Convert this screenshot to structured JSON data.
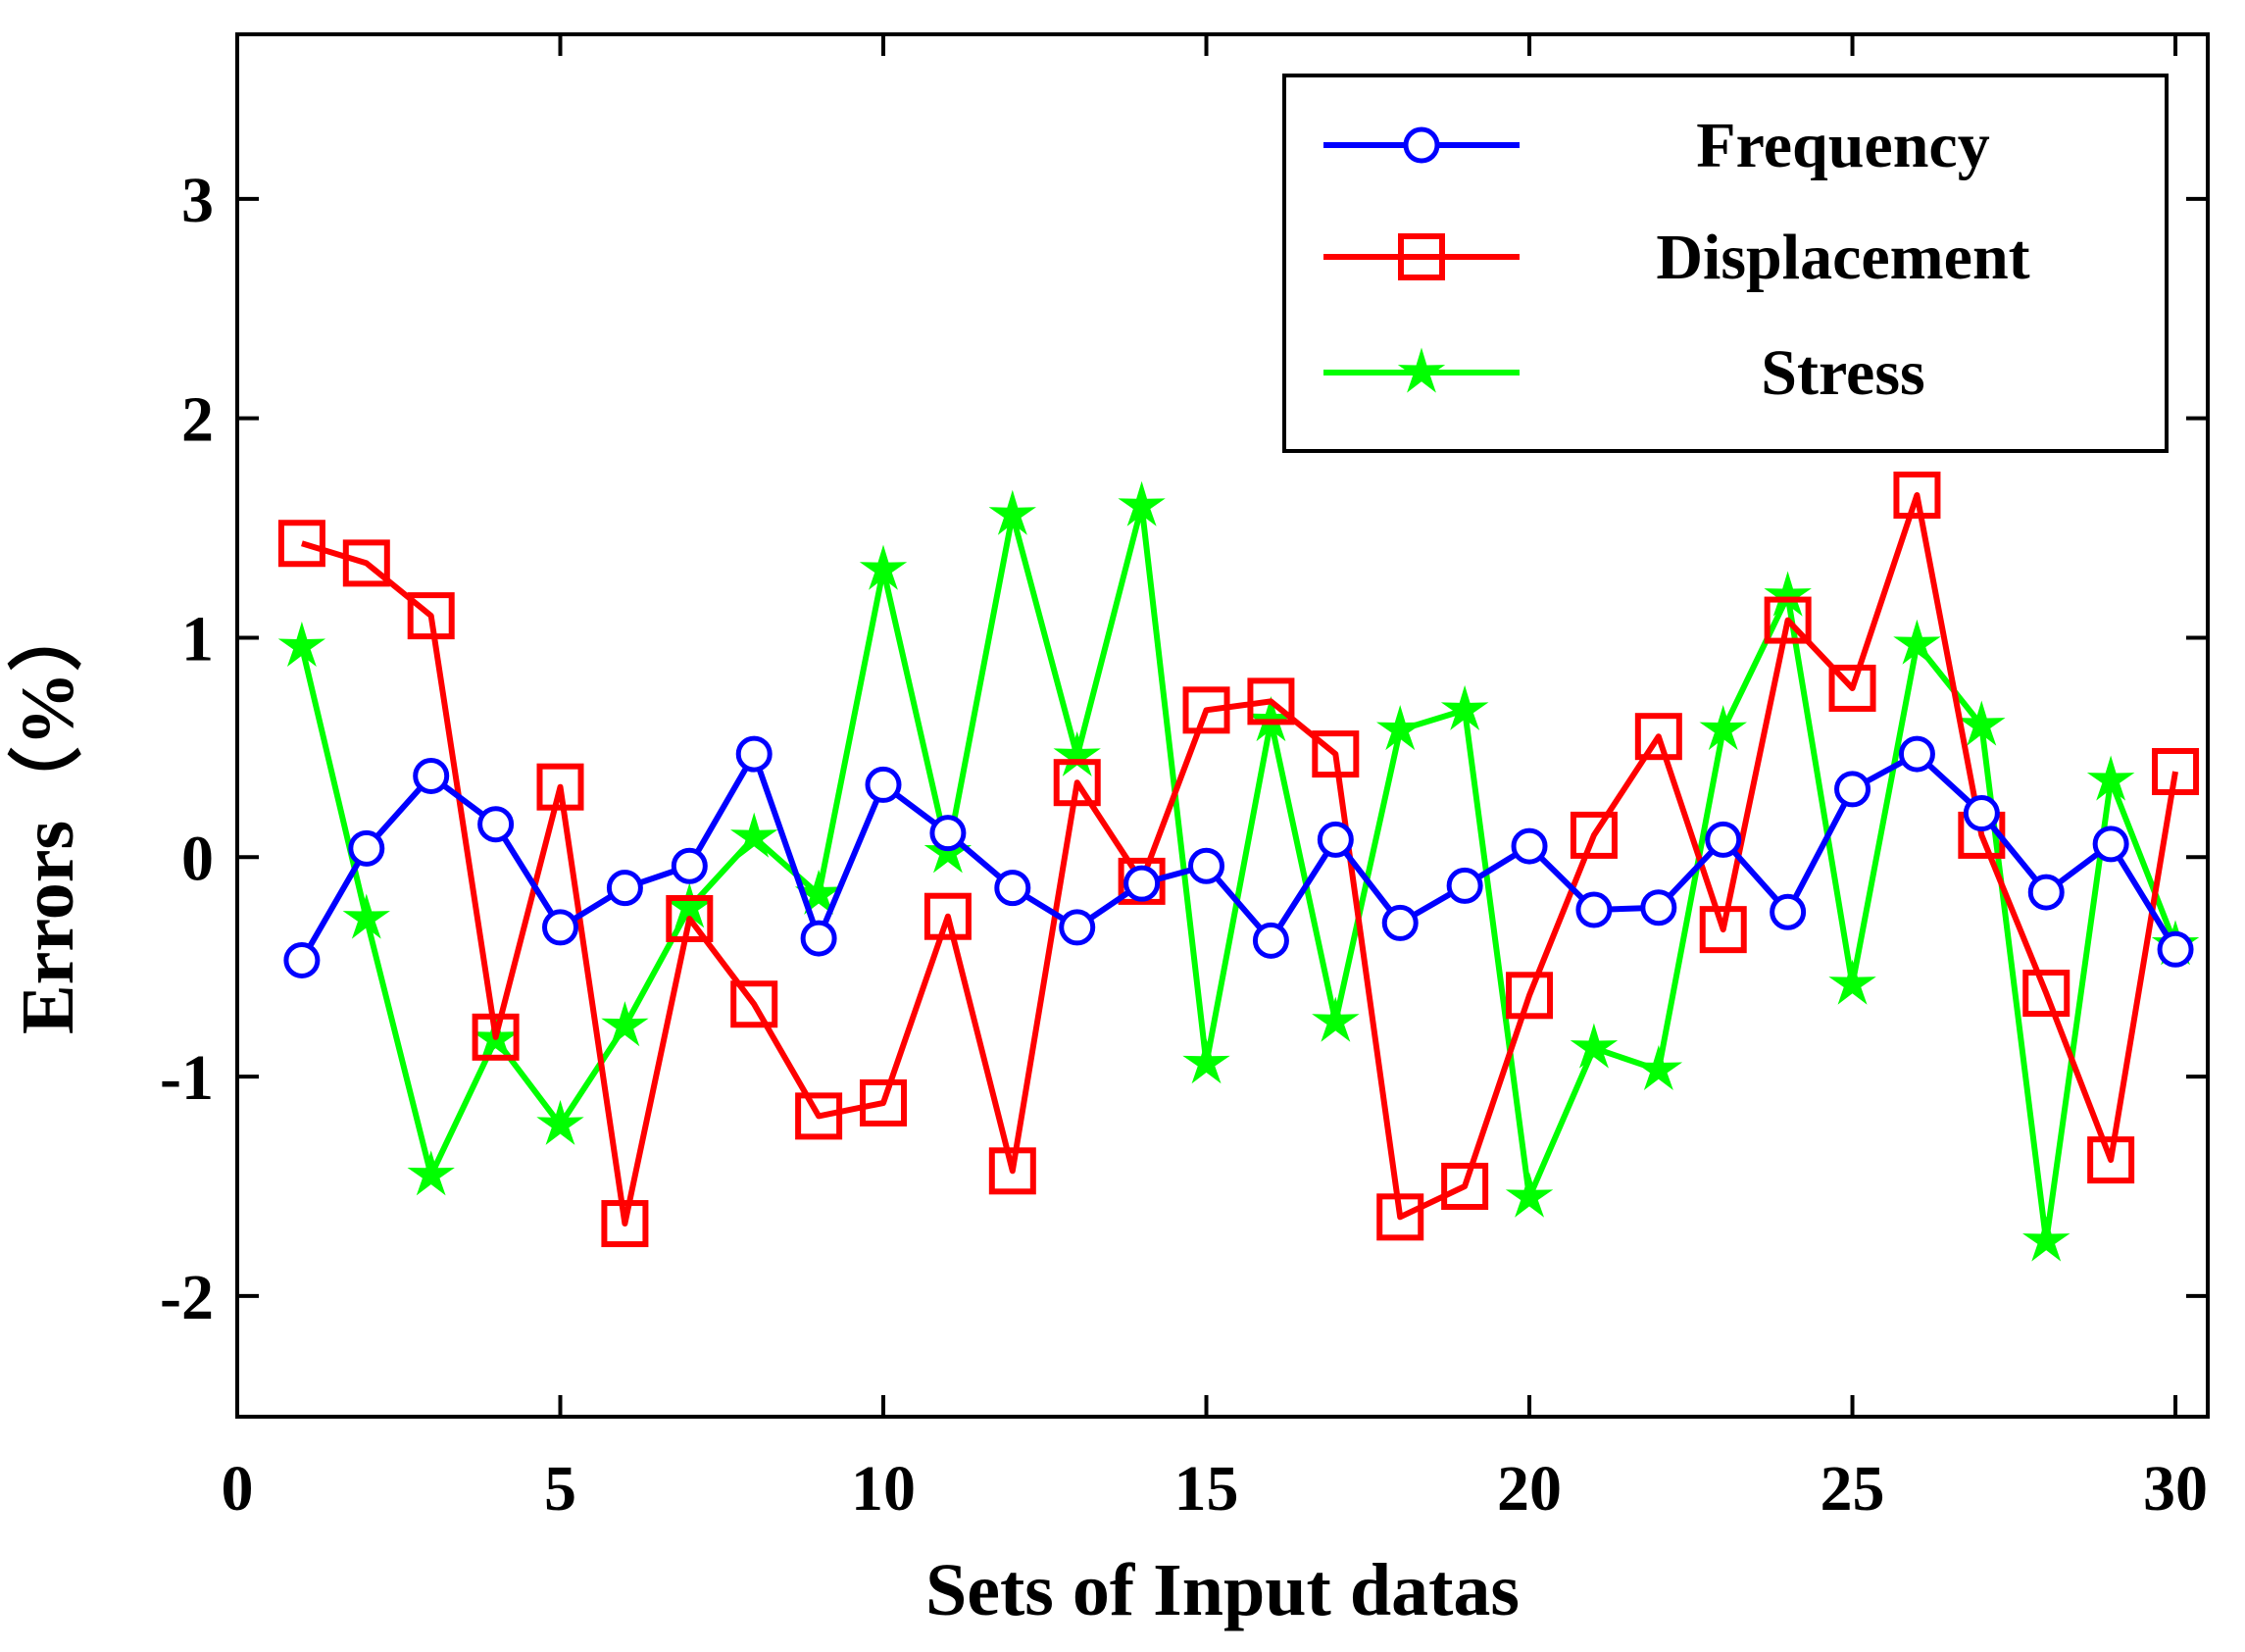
{
  "chart_data": {
    "type": "line",
    "title": "",
    "xlabel": "Sets of Input datas",
    "ylabel": "Errors（%）",
    "xlim": [
      0,
      30.5
    ],
    "ylim": [
      -2.55,
      3.75
    ],
    "xticks": [
      0,
      5,
      10,
      15,
      20,
      25,
      30
    ],
    "xtick_labels": [
      "0",
      "5",
      "10",
      "15",
      "20",
      "25",
      "30"
    ],
    "yticks": [
      -2,
      -1,
      0,
      1,
      2,
      3
    ],
    "ytick_labels": [
      "-2",
      "-1",
      "0",
      "1",
      "2",
      "3"
    ],
    "grid": false,
    "legend_position": "top-right",
    "x": [
      1,
      2,
      3,
      4,
      5,
      6,
      7,
      8,
      9,
      10,
      11,
      12,
      13,
      14,
      15,
      16,
      17,
      18,
      19,
      20,
      21,
      22,
      23,
      24,
      25,
      26,
      27,
      28,
      29,
      30
    ],
    "series": [
      {
        "name": "Frequency",
        "color": "#0000ff",
        "marker": "circle",
        "values": [
          -0.47,
          0.04,
          0.37,
          0.15,
          -0.32,
          -0.14,
          -0.04,
          0.47,
          -0.37,
          0.33,
          0.11,
          -0.14,
          -0.32,
          -0.12,
          -0.04,
          -0.38,
          0.08,
          -0.3,
          -0.13,
          0.05,
          -0.24,
          -0.23,
          0.08,
          -0.25,
          0.31,
          0.47,
          0.2,
          -0.16,
          0.06,
          -0.42
        ]
      },
      {
        "name": "Displacement",
        "color": "#ff0000",
        "marker": "square",
        "values": [
          1.43,
          1.34,
          1.1,
          -0.82,
          0.32,
          -1.67,
          -0.28,
          -0.67,
          -1.18,
          -1.12,
          -0.27,
          -1.43,
          0.34,
          -0.11,
          0.67,
          0.71,
          0.47,
          -1.64,
          -1.5,
          -0.63,
          0.1,
          0.55,
          -0.33,
          1.08,
          0.77,
          1.65,
          0.1,
          -0.62,
          -1.38,
          0.39
        ]
      },
      {
        "name": "Stress",
        "color": "#00ff00",
        "marker": "star",
        "values": [
          0.96,
          -0.28,
          -1.45,
          -0.83,
          -1.22,
          -0.77,
          -0.23,
          0.09,
          -0.17,
          1.31,
          0.02,
          1.56,
          0.46,
          1.6,
          -0.94,
          0.62,
          -0.75,
          0.58,
          0.67,
          -1.55,
          -0.87,
          -0.97,
          0.58,
          1.19,
          -0.58,
          0.97,
          0.6,
          -1.75,
          0.35,
          -0.4
        ]
      }
    ]
  }
}
